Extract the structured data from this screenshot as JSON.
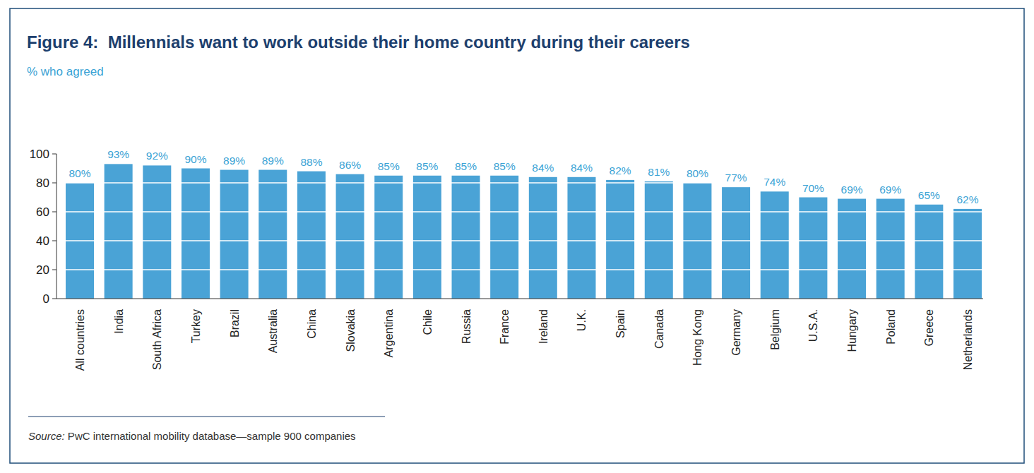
{
  "chart_data": {
    "type": "bar",
    "title": "Figure 4:  Millennials want to work outside their home country during their careers",
    "subtitle": "% who agreed",
    "source": "Source: PwC international mobility database—sample 900 companies",
    "categories": [
      "All countries",
      "India",
      "South Africa",
      "Turkey",
      "Brazil",
      "Australia",
      "China",
      "Slovakia",
      "Argentina",
      "Chile",
      "Russia",
      "France",
      "Ireland",
      "U.K.",
      "Spain",
      "Canada",
      "Hong Kong",
      "Germany",
      "Belgium",
      "U.S.A.",
      "Hungary",
      "Poland",
      "Greece",
      "Netherlands"
    ],
    "values": [
      80,
      93,
      92,
      90,
      89,
      89,
      88,
      86,
      85,
      85,
      85,
      85,
      84,
      84,
      82,
      81,
      80,
      77,
      74,
      70,
      69,
      69,
      65,
      62
    ],
    "value_labels": [
      "80%",
      "93%",
      "92%",
      "90%",
      "89%",
      "89%",
      "88%",
      "86%",
      "85%",
      "85%",
      "85%",
      "85%",
      "84%",
      "84%",
      "82%",
      "81%",
      "80%",
      "77%",
      "74%",
      "70%",
      "69%",
      "69%",
      "65%",
      "62%"
    ],
    "color": "#4aa3d6",
    "ylim": [
      0,
      100
    ],
    "yticks": [
      0,
      20,
      40,
      60,
      80,
      100
    ],
    "grid": true,
    "data_labels": true
  }
}
